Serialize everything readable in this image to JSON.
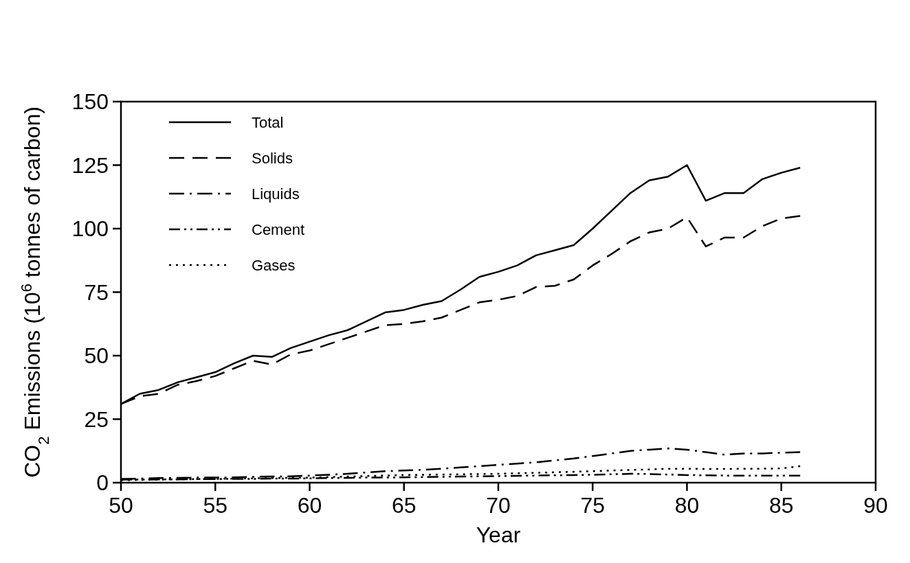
{
  "chart_data": {
    "type": "line",
    "xlabel": "Year",
    "ylabel": "CO$_{2}$ Emissions (10$^{6}$ tonnes of carbon)",
    "x": [
      50,
      51,
      52,
      53,
      54,
      55,
      56,
      57,
      58,
      59,
      60,
      61,
      62,
      63,
      64,
      65,
      66,
      67,
      68,
      69,
      70,
      71,
      72,
      73,
      74,
      75,
      76,
      77,
      78,
      79,
      80,
      81,
      82,
      83,
      84,
      85,
      86
    ],
    "xlim": [
      50,
      90
    ],
    "xticks": [
      50,
      55,
      60,
      65,
      70,
      75,
      80,
      85,
      90
    ],
    "ylim": [
      0,
      150
    ],
    "yticks": [
      0,
      25,
      50,
      75,
      100,
      125,
      150
    ],
    "grid": false,
    "legend": "top left",
    "series": [
      {
        "name": "Total",
        "color": "#000000",
        "line_style": "solid",
        "values": [
          31,
          35,
          36.5,
          39.5,
          41.5,
          43.5,
          47,
          50,
          49.5,
          53,
          55.5,
          58,
          60,
          63.5,
          67,
          68,
          70,
          71.5,
          76,
          81,
          83,
          85.5,
          89.5,
          91.5,
          93.5,
          100,
          107,
          114,
          119,
          120.5,
          125,
          111,
          114,
          114,
          119.5,
          122,
          124
        ]
      },
      {
        "name": "Solids",
        "color": "#000000",
        "line_style": "dashed",
        "values": [
          31,
          34,
          35,
          38.5,
          40,
          42,
          45,
          48,
          46.5,
          50.5,
          52,
          54.5,
          57,
          59.5,
          62,
          62.5,
          63.5,
          65,
          68,
          71,
          72,
          73.5,
          77,
          77.5,
          80,
          85.5,
          90,
          95,
          98.5,
          100,
          104.5,
          93,
          96.5,
          96.5,
          101,
          104,
          105
        ]
      },
      {
        "name": "Liquids",
        "color": "#000000",
        "line_style": "dashdot",
        "values": [
          1.5,
          1.6,
          1.8,
          1.9,
          2,
          2,
          2.1,
          2.3,
          2.4,
          2.5,
          2.8,
          3.1,
          3.5,
          4,
          4.5,
          4.8,
          5.1,
          5.5,
          6,
          6.5,
          7,
          7.5,
          8,
          8.8,
          9.5,
          10.5,
          11.5,
          12.5,
          13,
          13.5,
          13,
          12,
          11,
          11.5,
          11.5,
          11.8,
          12
        ]
      },
      {
        "name": "Cement",
        "color": "#000000",
        "line_style": "dashdotdot",
        "values": [
          1.2,
          1.2,
          1.3,
          1.3,
          1.4,
          1.4,
          1.5,
          1.5,
          1.6,
          1.6,
          1.7,
          1.8,
          1.9,
          2,
          2,
          2.1,
          2.2,
          2.3,
          2.4,
          2.5,
          2.6,
          2.7,
          2.8,
          2.9,
          3,
          3.1,
          3.3,
          3.5,
          3.4,
          3.2,
          3,
          2.9,
          2.8,
          2.8,
          2.8,
          2.8,
          2.8
        ]
      },
      {
        "name": "Gases",
        "color": "#000000",
        "line_style": "dotted",
        "values": [
          1,
          1.1,
          1.2,
          1.3,
          1.4,
          1.5,
          1.6,
          1.7,
          1.8,
          1.9,
          2,
          2.2,
          2.4,
          2.6,
          2.8,
          3,
          3.1,
          3.2,
          3.3,
          3.4,
          3.5,
          3.7,
          3.9,
          4.1,
          4.3,
          4.5,
          4.8,
          5,
          5.2,
          5.5,
          5.5,
          5.4,
          5.4,
          5.5,
          5.5,
          5.6,
          6.5
        ]
      }
    ]
  }
}
